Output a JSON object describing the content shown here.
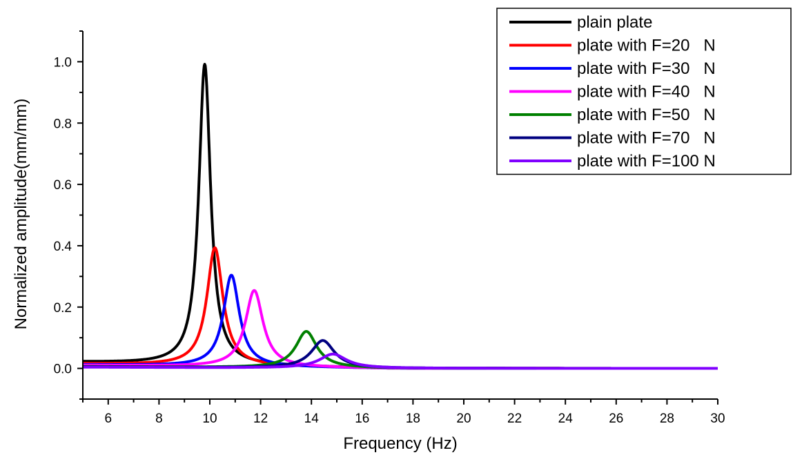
{
  "chart_data": {
    "type": "line",
    "title": "",
    "xlabel": "Frequency (Hz)",
    "ylabel": "Normalized amplitude(mm/mm)",
    "xlim": [
      5,
      30
    ],
    "ylim": [
      -0.1,
      1.1
    ],
    "x_ticks": [
      "6",
      "8",
      "10",
      "12",
      "14",
      "16",
      "18",
      "20",
      "22",
      "24",
      "26",
      "28",
      "30"
    ],
    "y_ticks": [
      "0.0",
      "0.2",
      "0.4",
      "0.6",
      "0.8",
      "1.0"
    ],
    "grid": false,
    "legend_position": "top-right",
    "series": [
      {
        "name": "plain plate",
        "color": "#000000",
        "peak_x": 9.8,
        "peak_y": 1.0,
        "width": 0.28,
        "base_y": 0.02
      },
      {
        "name": "plate with F=20   N",
        "color": "#ff0000",
        "peak_x": 10.2,
        "peak_y": 0.4,
        "width": 0.38,
        "base_y": 0.015
      },
      {
        "name": "plate with F=30   N",
        "color": "#0000ff",
        "peak_x": 10.85,
        "peak_y": 0.31,
        "width": 0.38,
        "base_y": 0.012
      },
      {
        "name": "plate with F=40   N",
        "color": "#ff00ff",
        "peak_x": 11.75,
        "peak_y": 0.26,
        "width": 0.42,
        "base_y": 0.01
      },
      {
        "name": "plate with F=50   N",
        "color": "#008000",
        "peak_x": 13.8,
        "peak_y": 0.125,
        "width": 0.5,
        "base_y": 0.006
      },
      {
        "name": "plate with F=70   N",
        "color": "#000080",
        "peak_x": 14.45,
        "peak_y": 0.095,
        "width": 0.55,
        "base_y": 0.005
      },
      {
        "name": "plate with F=100 N",
        "color": "#8000ff",
        "peak_x": 14.85,
        "peak_y": 0.05,
        "width": 0.65,
        "base_y": 0.004
      }
    ]
  }
}
